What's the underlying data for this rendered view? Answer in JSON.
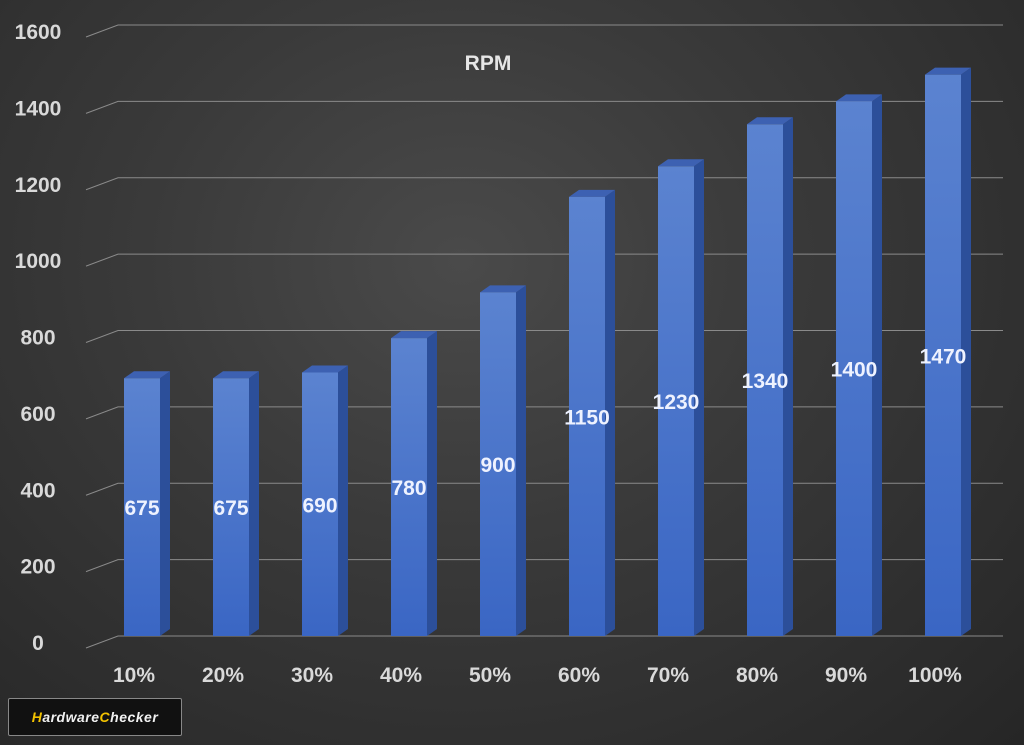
{
  "chart_data": {
    "type": "bar",
    "title": "RPM",
    "categories": [
      "10%",
      "20%",
      "30%",
      "40%",
      "50%",
      "60%",
      "70%",
      "80%",
      "90%",
      "100%"
    ],
    "values": [
      675,
      675,
      690,
      780,
      900,
      1150,
      1230,
      1340,
      1400,
      1470
    ],
    "ylim": [
      0,
      1600
    ],
    "yticks": [
      0,
      200,
      400,
      600,
      800,
      1000,
      1200,
      1400,
      1600
    ],
    "grid": true,
    "style": "3d-column",
    "bar_color": "#4472c4"
  },
  "watermark": {
    "brand": "HardwareChecker"
  }
}
